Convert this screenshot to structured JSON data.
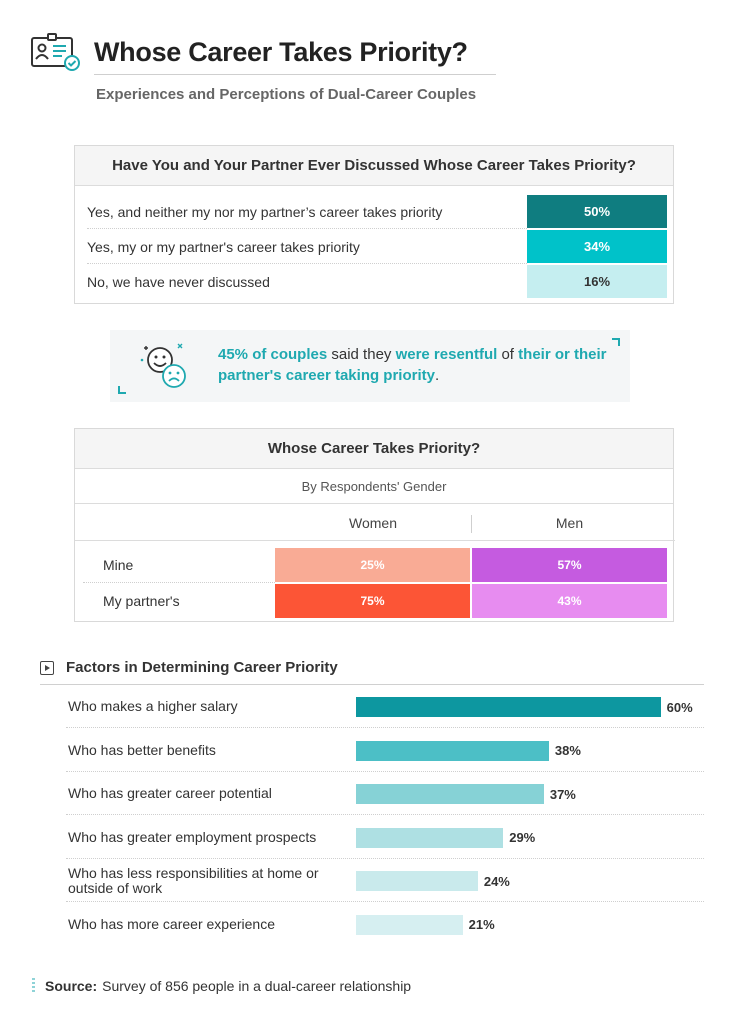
{
  "header": {
    "title": "Whose Career Takes Priority?",
    "subtitle": "Experiences and Perceptions of Dual-Career Couples",
    "icon": "profile-card-check-icon"
  },
  "discussed": {
    "question": "Have You and Your Partner Ever Discussed Whose Career Takes Priority?",
    "rows": [
      {
        "label": "Yes, and neither my nor my partner’s career takes priority",
        "value": "50%",
        "color": "#0f7d80",
        "text_color": "#ffffff"
      },
      {
        "label": "Yes, my or my partner's career takes priority",
        "value": "34%",
        "color": "#00c2c9",
        "text_color": "#ffffff"
      },
      {
        "label": "No, we have never discussed",
        "value": "16%",
        "color": "#c5eef0",
        "text_color": "#333333"
      }
    ]
  },
  "callout": {
    "part1": "45% of couples",
    "part2": " said they ",
    "part3": "were resentful",
    "part4": " of ",
    "part5": "their or their partner's career taking priority",
    "part6": ".",
    "icon": "happy-sad-faces-icon"
  },
  "gender": {
    "title": "Whose Career Takes Priority?",
    "subtitle": "By Respondents' Gender",
    "columns": [
      "Women",
      "Men"
    ],
    "rows": [
      {
        "label": "Mine",
        "women": "25%",
        "men": "57%",
        "women_color": "#f9ab95",
        "men_color": "#c55be0"
      },
      {
        "label": "My partner's",
        "women": "75%",
        "men": "43%",
        "women_color": "#fc5536",
        "men_color": "#e78cf0"
      }
    ]
  },
  "chart_data": {
    "type": "bar",
    "orientation": "horizontal",
    "title": "Factors in Determining Career Priority",
    "categories": [
      "Who makes a higher salary",
      "Who has better benefits",
      "Who has greater career potential",
      "Who has greater employment prospects",
      "Who has less responsibilities at home or outside of work",
      "Who has more career experience"
    ],
    "values": [
      60,
      38,
      37,
      29,
      24,
      21
    ],
    "value_labels": [
      "60%",
      "38%",
      "37%",
      "29%",
      "24%",
      "21%"
    ],
    "colors": [
      "#0d97a0",
      "#4cbfc6",
      "#86d2d6",
      "#aee0e3",
      "#c9eaec",
      "#d6eff1"
    ],
    "xlim": [
      0,
      65
    ],
    "grid": false
  },
  "source": {
    "label": "Source:",
    "text": "Survey of 856 people in a dual-career relationship"
  }
}
